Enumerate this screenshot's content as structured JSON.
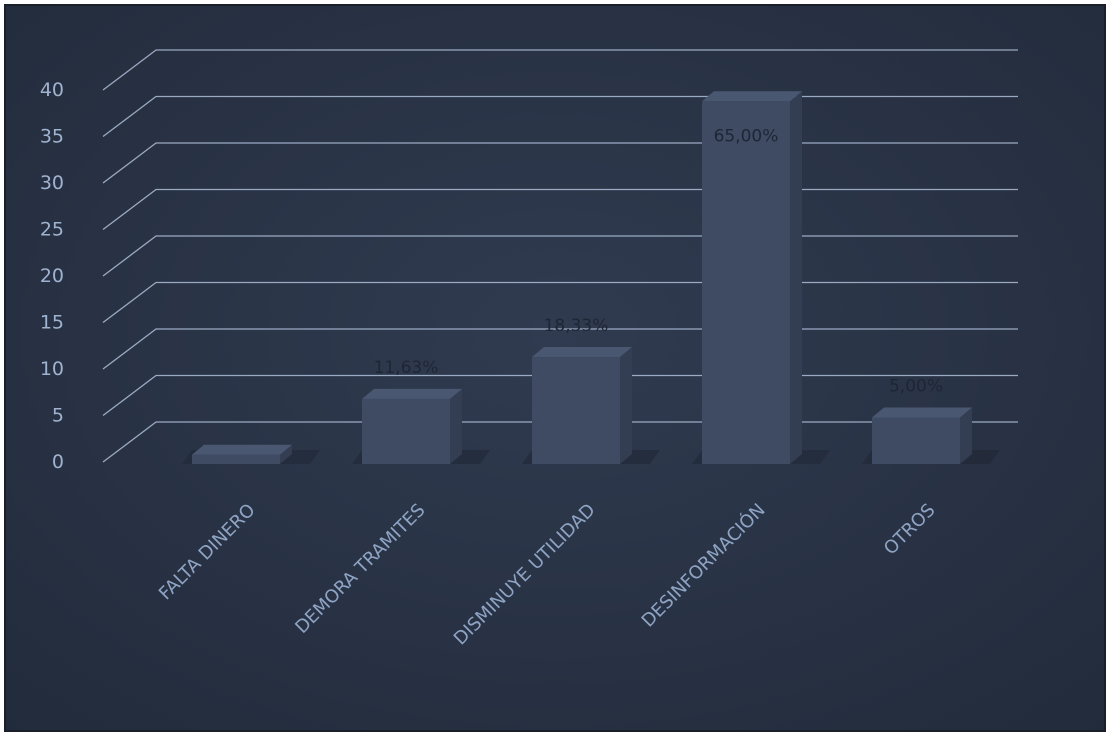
{
  "chart_data": {
    "type": "bar",
    "categories": [
      "FALTA DINERO",
      "DEMORA TRAMITES",
      "DISMINUYE UTILIDAD",
      "DESINFORMACIÓN",
      "OTROS"
    ],
    "values": [
      1,
      7,
      11.5,
      39,
      5
    ],
    "data_labels": [
      "",
      "11,63%",
      "18,33%",
      "65,00%",
      "5,00%"
    ],
    "yticks": [
      0,
      5,
      10,
      15,
      20,
      25,
      30,
      35,
      40
    ],
    "ylim": [
      0,
      45
    ],
    "grid": true,
    "legend": "none",
    "style": "3d-column",
    "colors": {
      "background": "#2a3447",
      "bar_front": "#3e4b62",
      "bar_side": "#333e52",
      "bar_top": "#4a5771",
      "grid": "#b8c8e2"
    }
  }
}
